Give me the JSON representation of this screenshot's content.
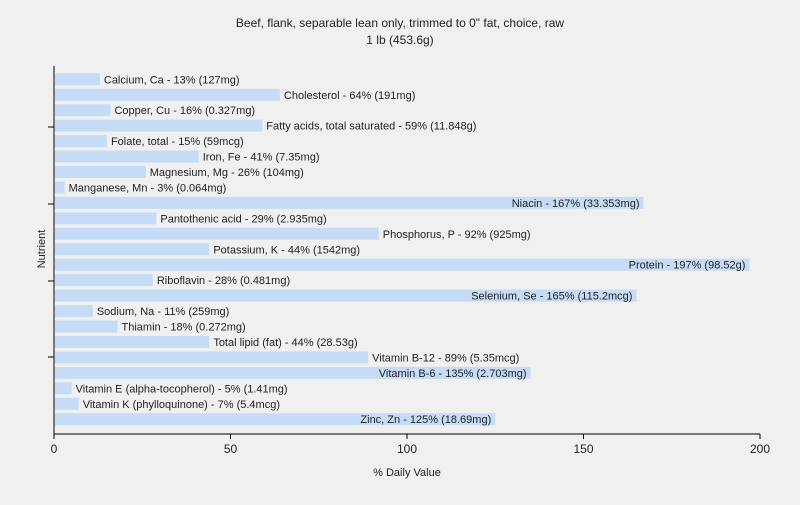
{
  "chart_data": {
    "type": "bar",
    "orientation": "horizontal",
    "title": "Beef, flank, separable lean only, trimmed to 0\" fat, choice, raw",
    "subtitle": "1 lb (453.6g)",
    "xlabel": "% Daily Value",
    "ylabel": "Nutrient",
    "xlim": [
      0,
      200
    ],
    "xticks": [
      "0",
      "50",
      "100",
      "150",
      "200"
    ],
    "grid": false,
    "bar_color": "#c6dcf6",
    "categories": [
      "Calcium, Ca",
      "Cholesterol",
      "Copper, Cu",
      "Fatty acids, total saturated",
      "Folate, total",
      "Iron, Fe",
      "Magnesium, Mg",
      "Manganese, Mn",
      "Niacin",
      "Pantothenic acid",
      "Phosphorus, P",
      "Potassium, K",
      "Protein",
      "Riboflavin",
      "Selenium, Se",
      "Sodium, Na",
      "Thiamin",
      "Total lipid (fat)",
      "Vitamin B-12",
      "Vitamin B-6",
      "Vitamin E (alpha-tocopherol)",
      "Vitamin K (phylloquinone)",
      "Zinc, Zn"
    ],
    "values": [
      13,
      64,
      16,
      59,
      15,
      41,
      26,
      3,
      167,
      29,
      92,
      44,
      197,
      28,
      165,
      11,
      18,
      44,
      89,
      135,
      5,
      7,
      125
    ],
    "labels": [
      "Calcium, Ca - 13% (127mg)",
      "Cholesterol - 64% (191mg)",
      "Copper, Cu - 16% (0.327mg)",
      "Fatty acids, total saturated - 59% (11.848g)",
      "Folate, total - 15% (59mcg)",
      "Iron, Fe - 41% (7.35mg)",
      "Magnesium, Mg - 26% (104mg)",
      "Manganese, Mn - 3% (0.064mg)",
      "Niacin - 167% (33.353mg)",
      "Pantothenic acid - 29% (2.935mg)",
      "Phosphorus, P - 92% (925mg)",
      "Potassium, K - 44% (1542mg)",
      "Protein - 197% (98.52g)",
      "Riboflavin - 28% (0.481mg)",
      "Selenium, Se - 165% (115.2mcg)",
      "Sodium, Na - 11% (259mg)",
      "Thiamin - 18% (0.272mg)",
      "Total lipid (fat) - 44% (28.53g)",
      "Vitamin B-12 - 89% (5.35mcg)",
      "Vitamin B-6 - 135% (2.703mg)",
      "Vitamin E (alpha-tocopherol) - 5% (1.41mg)",
      "Vitamin K (phylloquinone) - 7% (5.4mcg)",
      "Zinc, Zn - 125% (18.69mg)"
    ]
  }
}
